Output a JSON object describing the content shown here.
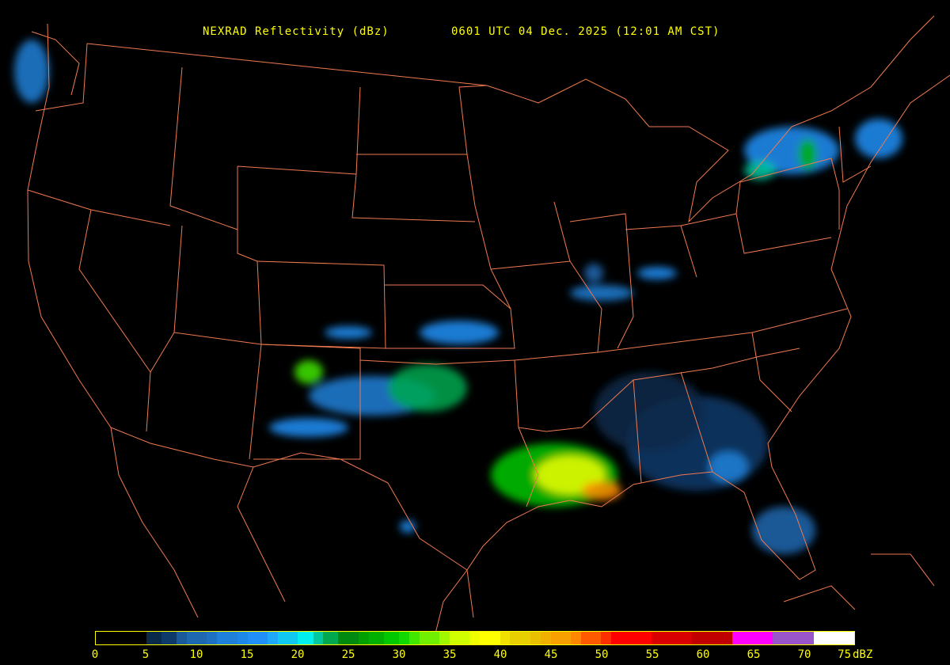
{
  "title": {
    "product": "NEXRAD Reflectivity (dBz)",
    "time": "0601 UTC 04 Dec. 2025 (12:01 AM CST)"
  },
  "colors": {
    "boundary": "#f07a50",
    "title": "#ffff00",
    "background": "#000000"
  },
  "legend": {
    "unit": "dBZ",
    "range": [
      0,
      75
    ],
    "ticks": [
      "0",
      "5",
      "10",
      "15",
      "20",
      "25",
      "30",
      "35",
      "40",
      "45",
      "50",
      "55",
      "60",
      "65",
      "70",
      "75"
    ],
    "color_bins": [
      {
        "from": 0,
        "to": 5,
        "color": "#000000"
      },
      {
        "from": 5,
        "to": 6.5,
        "color": "#0a2a4a"
      },
      {
        "from": 6.5,
        "to": 8,
        "color": "#0e3a6a"
      },
      {
        "from": 8,
        "to": 9,
        "color": "#1a5a9a"
      },
      {
        "from": 9,
        "to": 11,
        "color": "#1e68b0"
      },
      {
        "from": 11,
        "to": 12,
        "color": "#1e70c0"
      },
      {
        "from": 12,
        "to": 14,
        "color": "#1e80d8"
      },
      {
        "from": 14,
        "to": 15,
        "color": "#1e88e8"
      },
      {
        "from": 15,
        "to": 17,
        "color": "#2090f8"
      },
      {
        "from": 17,
        "to": 18,
        "color": "#20a8f8"
      },
      {
        "from": 18,
        "to": 20,
        "color": "#10c8f0"
      },
      {
        "from": 20,
        "to": 21.5,
        "color": "#00f0f0"
      },
      {
        "from": 21.5,
        "to": 22.5,
        "color": "#00c8a0"
      },
      {
        "from": 22.5,
        "to": 24,
        "color": "#00a850"
      },
      {
        "from": 24,
        "to": 26,
        "color": "#008a10"
      },
      {
        "from": 26,
        "to": 27,
        "color": "#00a000"
      },
      {
        "from": 27,
        "to": 28.5,
        "color": "#00b000"
      },
      {
        "from": 28.5,
        "to": 30,
        "color": "#00c800"
      },
      {
        "from": 30,
        "to": 31,
        "color": "#10d800"
      },
      {
        "from": 31,
        "to": 32,
        "color": "#40e800"
      },
      {
        "from": 32,
        "to": 34,
        "color": "#70f000"
      },
      {
        "from": 34,
        "to": 35,
        "color": "#a0f800"
      },
      {
        "from": 35,
        "to": 37,
        "color": "#d0ff00"
      },
      {
        "from": 37,
        "to": 38,
        "color": "#f0ff00"
      },
      {
        "from": 38,
        "to": 40,
        "color": "#ffff00"
      },
      {
        "from": 40,
        "to": 41,
        "color": "#f0e000"
      },
      {
        "from": 41,
        "to": 43,
        "color": "#e8d000"
      },
      {
        "from": 43,
        "to": 44,
        "color": "#e8c000"
      },
      {
        "from": 44,
        "to": 45,
        "color": "#f0b000"
      },
      {
        "from": 45,
        "to": 47,
        "color": "#f8a000"
      },
      {
        "from": 47,
        "to": 48,
        "color": "#ff8800"
      },
      {
        "from": 48,
        "to": 50,
        "color": "#ff5a00"
      },
      {
        "from": 50,
        "to": 51,
        "color": "#ff3000"
      },
      {
        "from": 51,
        "to": 55,
        "color": "#ff0000"
      },
      {
        "from": 55,
        "to": 59,
        "color": "#d80000"
      },
      {
        "from": 59,
        "to": 63,
        "color": "#c00000"
      },
      {
        "from": 63,
        "to": 67,
        "color": "#ff00ff"
      },
      {
        "from": 67,
        "to": 71,
        "color": "#9a55c8"
      },
      {
        "from": 71,
        "to": 75,
        "color": "#ffffff"
      }
    ]
  }
}
